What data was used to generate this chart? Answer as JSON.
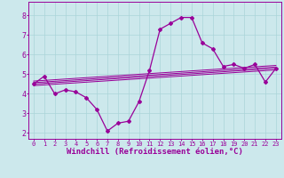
{
  "xlabel": "Windchill (Refroidissement éolien,°C)",
  "bg_color": "#cce8ec",
  "line_color": "#990099",
  "x_data": [
    0,
    1,
    2,
    3,
    4,
    5,
    6,
    7,
    8,
    9,
    10,
    11,
    12,
    13,
    14,
    15,
    16,
    17,
    18,
    19,
    20,
    21,
    22,
    23
  ],
  "y_data": [
    4.5,
    4.9,
    4.0,
    4.2,
    4.1,
    3.8,
    3.2,
    2.1,
    2.5,
    2.6,
    3.6,
    5.2,
    7.3,
    7.6,
    7.9,
    7.9,
    6.6,
    6.3,
    5.4,
    5.5,
    5.3,
    5.5,
    4.6,
    5.3
  ],
  "ylim": [
    1.7,
    8.7
  ],
  "xlim": [
    -0.5,
    23.5
  ],
  "yticks": [
    2,
    3,
    4,
    5,
    6,
    7,
    8
  ],
  "xticks": [
    0,
    1,
    2,
    3,
    4,
    5,
    6,
    7,
    8,
    9,
    10,
    11,
    12,
    13,
    14,
    15,
    16,
    17,
    18,
    19,
    20,
    21,
    22,
    23
  ],
  "grid_color": "#aad4d8",
  "marker": "D",
  "markersize": 2.0,
  "linewidth": 0.9,
  "regression_lines": [
    {
      "x0": 0,
      "y0": 4.42,
      "x1": 23,
      "y1": 5.22
    },
    {
      "x0": 0,
      "y0": 4.5,
      "x1": 23,
      "y1": 5.3
    },
    {
      "x0": 0,
      "y0": 4.57,
      "x1": 23,
      "y1": 5.37
    },
    {
      "x0": 0,
      "y0": 4.65,
      "x1": 23,
      "y1": 5.45
    }
  ],
  "xlabel_fontsize": 6.5,
  "tick_fontsize": 6.0,
  "xtick_fontsize": 5.0
}
